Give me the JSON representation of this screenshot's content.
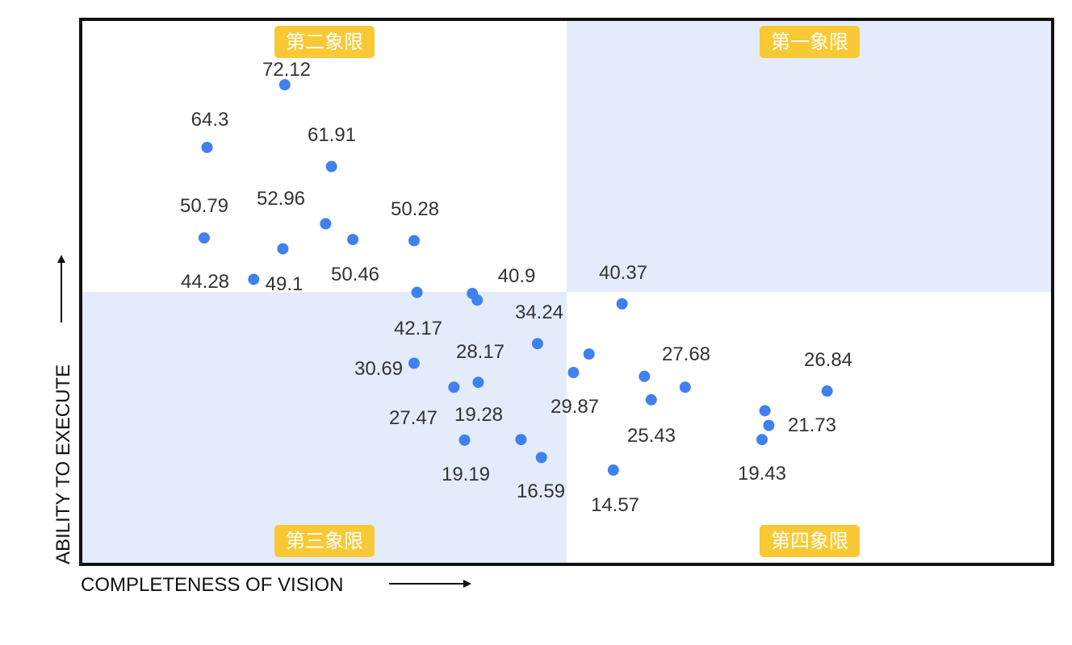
{
  "chart_data": {
    "type": "scatter",
    "xlabel": "COMPLETENESS OF VISION",
    "ylabel": "ABILITY TO EXECUTE",
    "quadrants": [
      "第一象限",
      "第二象限",
      "第三象限",
      "第四象限"
    ],
    "colors": {
      "point": "#4080f0",
      "quadrant_fill": "#e4ecfb",
      "badge": "#f9c935",
      "border": "#111111"
    },
    "points": [
      {
        "label": "72.12",
        "x": 21,
        "y": 88
      },
      {
        "label": "64.3",
        "x": 13,
        "y": 76.5
      },
      {
        "label": "61.91",
        "x": 25.8,
        "y": 73
      },
      {
        "label": "52.96",
        "x": 25.2,
        "y": 62.5
      },
      {
        "label": "50.79",
        "x": 12.7,
        "y": 59.9
      },
      {
        "label": "50.46",
        "x": 28,
        "y": 59.6
      },
      {
        "label": "50.28",
        "x": 34.3,
        "y": 59.4
      },
      {
        "label": "49.1",
        "x": 20.8,
        "y": 57.9
      },
      {
        "label": "44.28",
        "x": 17.8,
        "y": 52.3
      },
      {
        "label": "42.17",
        "x": 34.6,
        "y": 49.9
      },
      {
        "label": "40.9",
        "x": 40.3,
        "y": 49.7
      },
      {
        "label": "40.9",
        "x": 40.8,
        "y": 48.5
      },
      {
        "label": "40.37",
        "x": 55.7,
        "y": 47.8
      },
      {
        "label": "34.24",
        "x": 47,
        "y": 40.5
      },
      {
        "label": "30.69",
        "x": 34.3,
        "y": 36.9
      },
      {
        "label": "29.87",
        "x": 52.3,
        "y": 38.6
      },
      {
        "label": "29.87",
        "x": 50.7,
        "y": 35.2
      },
      {
        "label": "28.17",
        "x": 40.9,
        "y": 33.4
      },
      {
        "label": "27.68",
        "x": 58,
        "y": 34.5
      },
      {
        "label": "27.68",
        "x": 62.2,
        "y": 32.5
      },
      {
        "label": "27.47",
        "x": 38.4,
        "y": 32.5
      },
      {
        "label": "26.84",
        "x": 76.8,
        "y": 31.8
      },
      {
        "label": "25.43",
        "x": 58.7,
        "y": 30.2
      },
      {
        "label": "21.73",
        "x": 70.4,
        "y": 28.2
      },
      {
        "label": "21.73",
        "x": 70.8,
        "y": 25.5
      },
      {
        "label": "19.43",
        "x": 70.1,
        "y": 22.9
      },
      {
        "label": "19.28",
        "x": 45.3,
        "y": 22.9
      },
      {
        "label": "19.19",
        "x": 39.5,
        "y": 22.8
      },
      {
        "label": "16.59",
        "x": 47.4,
        "y": 19.6
      },
      {
        "label": "14.57",
        "x": 54.8,
        "y": 17.3
      }
    ],
    "labels": [
      {
        "text": "72.12"
      },
      {
        "text": "64.3"
      },
      {
        "text": "61.91"
      },
      {
        "text": "52.96"
      },
      {
        "text": "50.79"
      },
      {
        "text": "50.46"
      },
      {
        "text": "50.28"
      },
      {
        "text": "49.1"
      },
      {
        "text": "44.28"
      },
      {
        "text": "42.17"
      },
      {
        "text": "40.9"
      },
      {
        "text": "40.37"
      },
      {
        "text": "34.24"
      },
      {
        "text": "30.69"
      },
      {
        "text": "29.87"
      },
      {
        "text": "28.17"
      },
      {
        "text": "27.68"
      },
      {
        "text": "27.47"
      },
      {
        "text": "26.84"
      },
      {
        "text": "25.43"
      },
      {
        "text": "21.73"
      },
      {
        "text": "19.43"
      },
      {
        "text": "19.28"
      },
      {
        "text": "19.19"
      },
      {
        "text": "16.59"
      },
      {
        "text": "14.57"
      }
    ]
  }
}
